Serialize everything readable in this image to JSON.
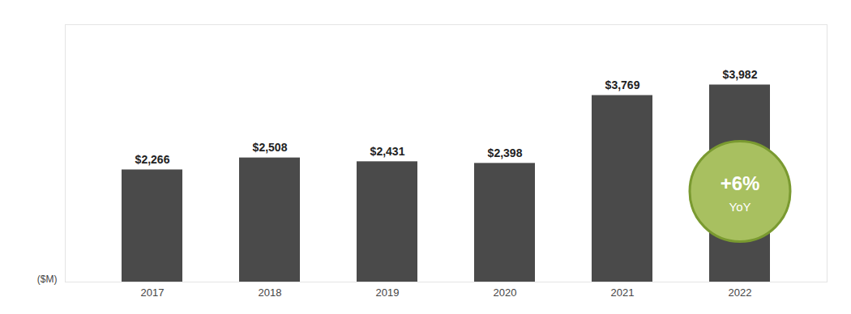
{
  "chart_data": {
    "type": "bar",
    "categories": [
      "2017",
      "2018",
      "2019",
      "2020",
      "2021",
      "2022"
    ],
    "values": [
      2266,
      2508,
      2431,
      2398,
      3769,
      3982
    ],
    "value_labels": [
      "$2,266",
      "$2,508",
      "$2,431",
      "$2,398",
      "$3,769",
      "$3,982"
    ],
    "data_labels": true,
    "color": "#4a4a4a",
    "ylabel": "($M)",
    "ylim": [
      0,
      5200
    ],
    "tick_labels": "x",
    "grid": false,
    "annotation": {
      "lines": [
        "+6%",
        "YoY"
      ],
      "color": "#a8c060"
    }
  }
}
